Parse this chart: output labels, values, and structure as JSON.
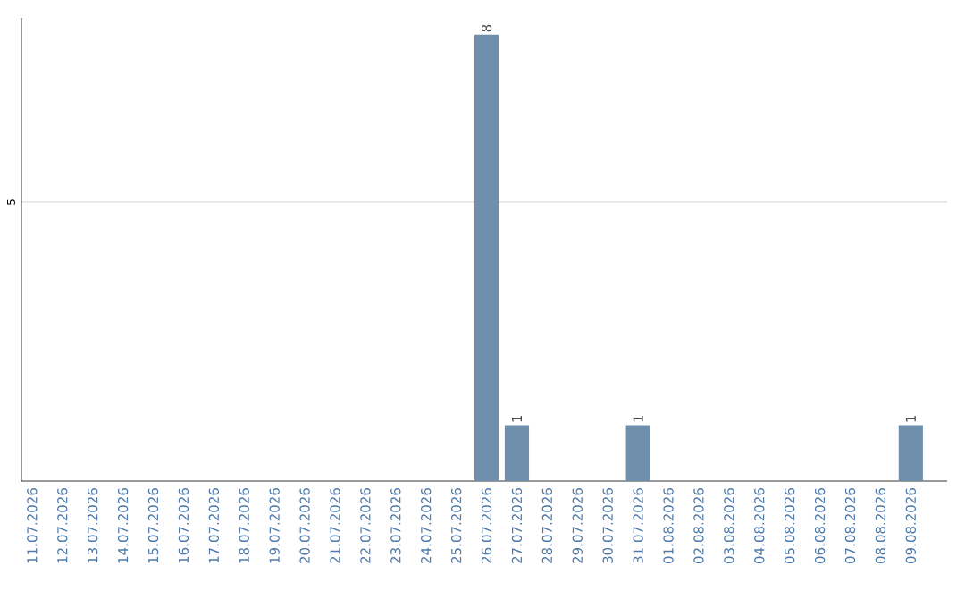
{
  "chart_data": {
    "type": "bar",
    "data_labels": true,
    "ylim": [
      0,
      8.3
    ],
    "categories": [
      "11.07.2026",
      "12.07.2026",
      "13.07.2026",
      "14.07.2026",
      "15.07.2026",
      "16.07.2026",
      "17.07.2026",
      "18.07.2026",
      "19.07.2026",
      "20.07.2026",
      "21.07.2026",
      "22.07.2026",
      "23.07.2026",
      "24.07.2026",
      "25.07.2026",
      "26.07.2026",
      "27.07.2026",
      "28.07.2026",
      "29.07.2026",
      "30.07.2026",
      "31.07.2026",
      "01.08.2026",
      "02.08.2026",
      "03.08.2026",
      "04.08.2026",
      "05.08.2026",
      "06.08.2026",
      "07.08.2026",
      "08.08.2026",
      "09.08.2026"
    ],
    "values": [
      null,
      null,
      null,
      null,
      null,
      null,
      null,
      null,
      null,
      null,
      null,
      null,
      null,
      null,
      null,
      8,
      1,
      null,
      null,
      null,
      1,
      null,
      null,
      null,
      null,
      null,
      null,
      null,
      null,
      1
    ],
    "color": "#6f8fad",
    "yticks": [
      5
    ],
    "grid": "y"
  }
}
